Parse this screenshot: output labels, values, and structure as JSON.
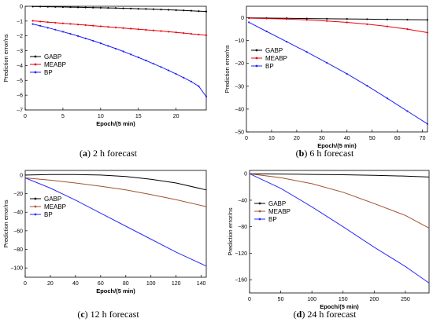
{
  "figure": {
    "colors": {
      "GABP": "#000000",
      "MEABP": "#e8000b",
      "BP": "#1f1fff",
      "MEABP_alt": "#a0522d",
      "BP_alt": "#2a2aff"
    }
  },
  "chart_data": [
    {
      "id": "a",
      "type": "line",
      "caption_letter": "a",
      "caption_text": " 2 h forecast",
      "caption_open": "(",
      "caption_close": ")",
      "xlabel": "Epoch/(5 min)",
      "ylabel": "Prediction error/ns",
      "xlim": [
        0,
        24
      ],
      "ylim": [
        -7,
        0
      ],
      "xticks": [
        0,
        5,
        10,
        15,
        20
      ],
      "yticks": [
        0,
        -1,
        -2,
        -3,
        -4,
        -5,
        -6,
        -7
      ],
      "legend_position": "middle-left",
      "markers": true,
      "series": [
        {
          "name": "GABP",
          "color_key": "GABP",
          "x": [
            1,
            2,
            3,
            4,
            5,
            6,
            7,
            8,
            9,
            10,
            11,
            12,
            13,
            14,
            15,
            16,
            17,
            18,
            19,
            20,
            21,
            22,
            23,
            24
          ],
          "values": [
            -0.02,
            -0.02,
            -0.03,
            -0.04,
            -0.05,
            -0.06,
            -0.07,
            -0.08,
            -0.09,
            -0.1,
            -0.11,
            -0.12,
            -0.14,
            -0.15,
            -0.17,
            -0.18,
            -0.2,
            -0.22,
            -0.24,
            -0.26,
            -0.28,
            -0.3,
            -0.33,
            -0.35
          ]
        },
        {
          "name": "MEABP",
          "color_key": "MEABP",
          "x": [
            1,
            2,
            3,
            4,
            5,
            6,
            7,
            8,
            9,
            10,
            11,
            12,
            13,
            14,
            15,
            16,
            17,
            18,
            19,
            20,
            21,
            22,
            23,
            24
          ],
          "values": [
            -0.98,
            -1.03,
            -1.07,
            -1.11,
            -1.15,
            -1.19,
            -1.23,
            -1.27,
            -1.31,
            -1.35,
            -1.39,
            -1.43,
            -1.47,
            -1.51,
            -1.55,
            -1.59,
            -1.63,
            -1.67,
            -1.72,
            -1.76,
            -1.81,
            -1.86,
            -1.91,
            -1.96
          ]
        },
        {
          "name": "BP",
          "color_key": "BP",
          "x": [
            1,
            2,
            3,
            4,
            5,
            6,
            7,
            8,
            9,
            10,
            11,
            12,
            13,
            14,
            15,
            16,
            17,
            18,
            19,
            20,
            21,
            22,
            23,
            24
          ],
          "values": [
            -1.2,
            -1.32,
            -1.45,
            -1.58,
            -1.72,
            -1.86,
            -2.01,
            -2.17,
            -2.33,
            -2.5,
            -2.68,
            -2.86,
            -3.05,
            -3.25,
            -3.45,
            -3.66,
            -3.88,
            -4.1,
            -4.33,
            -4.57,
            -4.82,
            -5.08,
            -5.4,
            -6.1
          ]
        }
      ]
    },
    {
      "id": "b",
      "type": "line",
      "caption_letter": "b",
      "caption_text": " 6 h forecast",
      "caption_open": "(",
      "caption_close": ")",
      "xlabel": "Epoch/(5 min)",
      "ylabel": "Prediction error/ns",
      "xlim": [
        0,
        72
      ],
      "ylim": [
        -50,
        5
      ],
      "xticks": [
        0,
        10,
        20,
        30,
        40,
        50,
        60,
        70
      ],
      "yticks": [
        0,
        -10,
        -20,
        -30,
        -40,
        -50
      ],
      "legend_position": "middle-left",
      "markers": true,
      "series": [
        {
          "name": "GABP",
          "color_key": "GABP",
          "x": [
            1,
            8,
            16,
            24,
            32,
            40,
            48,
            56,
            64,
            72
          ],
          "values": [
            -0.1,
            -0.15,
            -0.25,
            -0.35,
            -0.45,
            -0.55,
            -0.65,
            -0.75,
            -0.85,
            -0.95
          ]
        },
        {
          "name": "MEABP",
          "color_key": "MEABP",
          "x": [
            1,
            8,
            16,
            24,
            32,
            40,
            48,
            56,
            64,
            72
          ],
          "values": [
            -0.2,
            -0.35,
            -0.6,
            -0.95,
            -1.45,
            -2.05,
            -2.85,
            -3.8,
            -5.0,
            -6.5
          ]
        },
        {
          "name": "BP",
          "color_key": "BP",
          "x": [
            1,
            8,
            16,
            24,
            32,
            40,
            48,
            56,
            64,
            72
          ],
          "values": [
            -2.0,
            -6.0,
            -10.5,
            -15.0,
            -19.7,
            -24.6,
            -29.8,
            -35.3,
            -40.9,
            -46.5
          ]
        }
      ]
    },
    {
      "id": "c",
      "type": "line",
      "caption_letter": "c",
      "caption_text": " 12 h forecast",
      "caption_open": "(",
      "caption_close": ")",
      "xlabel": "Epoch/(5 min)",
      "ylabel": "Prediction error/ns",
      "xlim": [
        0,
        144
      ],
      "ylim": [
        -110,
        5
      ],
      "xticks": [
        0,
        20,
        40,
        60,
        80,
        100,
        120,
        140
      ],
      "yticks": [
        0,
        -20,
        -40,
        -60,
        -80,
        -100
      ],
      "legend_position": "upper-left",
      "markers": false,
      "series": [
        {
          "name": "GABP",
          "color_key": "GABP",
          "x": [
            0,
            20,
            40,
            60,
            80,
            100,
            120,
            144
          ],
          "values": [
            0,
            0.5,
            0.5,
            0,
            -1.5,
            -4.5,
            -8.5,
            -16
          ]
        },
        {
          "name": "MEABP",
          "color_key": "MEABP_alt",
          "x": [
            0,
            20,
            40,
            60,
            80,
            100,
            120,
            144
          ],
          "values": [
            -3,
            -5.5,
            -8.5,
            -12,
            -16,
            -21,
            -26.5,
            -34
          ]
        },
        {
          "name": "BP",
          "color_key": "BP_alt",
          "x": [
            0,
            20,
            40,
            60,
            80,
            100,
            120,
            144
          ],
          "values": [
            -3,
            -14,
            -27,
            -41,
            -55,
            -69,
            -83,
            -98
          ]
        }
      ]
    },
    {
      "id": "d",
      "type": "line",
      "caption_letter": "d",
      "caption_text": " 24 h forecast",
      "caption_open": "(",
      "caption_close": ")",
      "xlabel": "Epoch/(5 min)",
      "ylabel": "Prediction error/ns",
      "xlim": [
        0,
        288
      ],
      "ylim": [
        -180,
        5
      ],
      "xticks": [
        0,
        50,
        100,
        150,
        200,
        250
      ],
      "yticks": [
        0,
        -40,
        -80,
        -120,
        -160
      ],
      "legend_position": "upper-left",
      "markers": false,
      "series": [
        {
          "name": "GABP",
          "color_key": "GABP",
          "x": [
            0,
            50,
            100,
            150,
            200,
            250,
            288
          ],
          "values": [
            0,
            -0.5,
            -1,
            -1.5,
            -2.5,
            -3.5,
            -5
          ]
        },
        {
          "name": "MEABP",
          "color_key": "MEABP_alt",
          "x": [
            0,
            50,
            100,
            150,
            200,
            250,
            288
          ],
          "values": [
            0,
            -6,
            -15,
            -28,
            -45,
            -63,
            -82
          ]
        },
        {
          "name": "BP",
          "color_key": "BP_alt",
          "x": [
            0,
            50,
            100,
            150,
            200,
            250,
            288
          ],
          "values": [
            0,
            -22,
            -50,
            -80,
            -111,
            -140,
            -165
          ]
        }
      ]
    }
  ]
}
